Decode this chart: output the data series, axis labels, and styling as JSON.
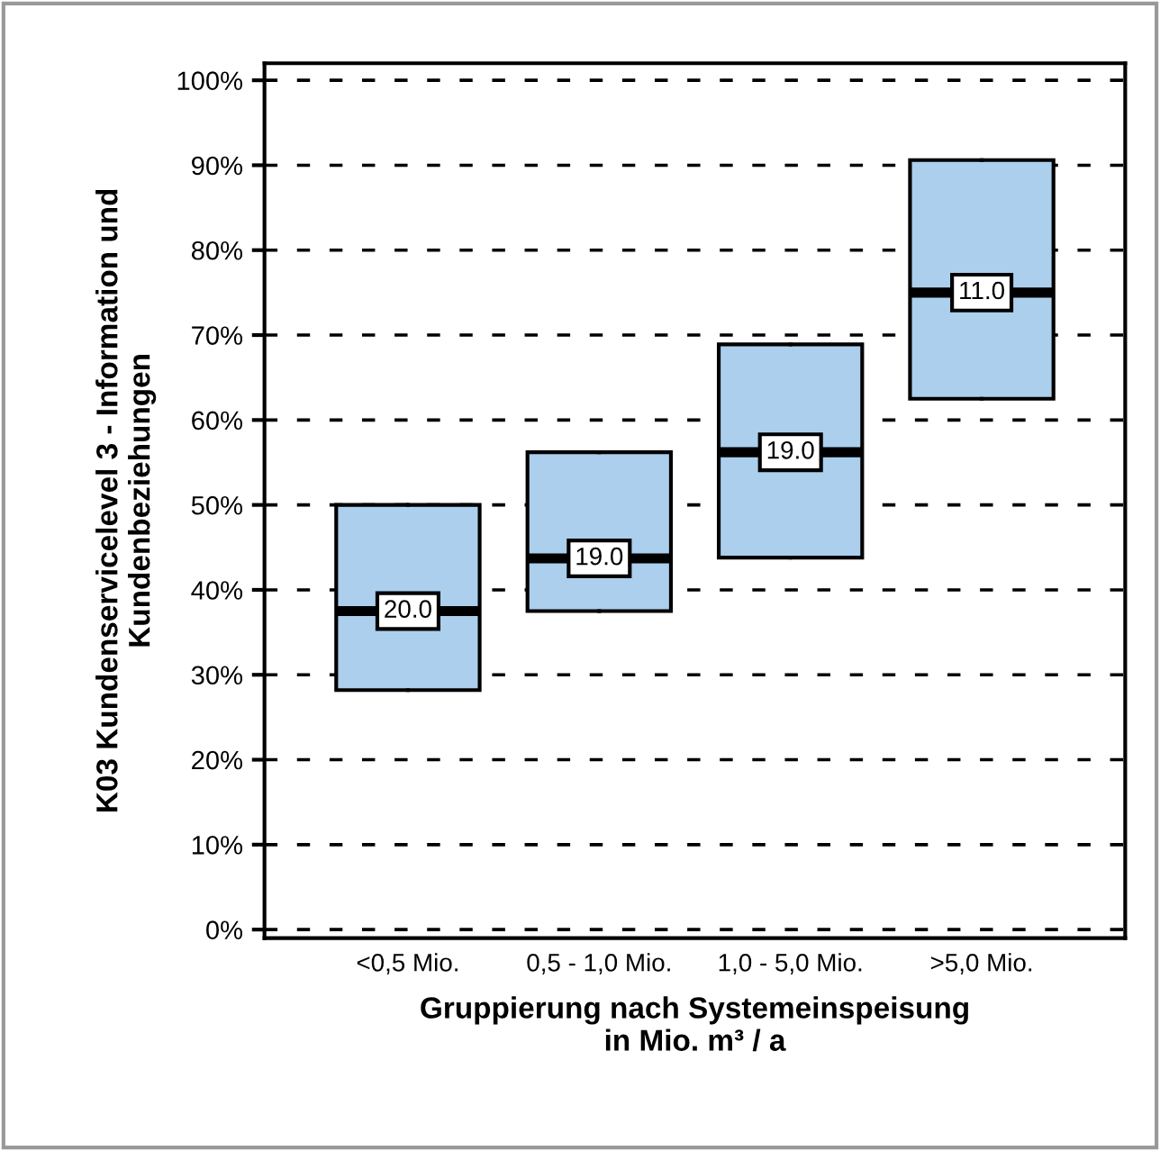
{
  "chart_data": {
    "type": "box",
    "categories": [
      "<0,5 Mio.",
      "0,5 - 1,0 Mio.",
      "1,0 - 5,0 Mio.",
      ">5,0 Mio."
    ],
    "boxes": [
      {
        "low": 28.2,
        "q1": 28.2,
        "median": 37.5,
        "q3": 50.0,
        "high": 50.0
      },
      {
        "low": 37.5,
        "q1": 37.5,
        "median": 43.7,
        "q3": 56.2,
        "high": 56.2
      },
      {
        "low": 43.8,
        "q1": 43.8,
        "median": 56.2,
        "q3": 68.9,
        "high": 68.9
      },
      {
        "low": 62.5,
        "q1": 62.5,
        "median": 75.0,
        "q3": 90.6,
        "high": 90.6
      }
    ],
    "color": "#abcfed",
    "xlabel": "Gruppierung nach Systemeinspeisung\nin Mio. m³ / a",
    "ylabel": "K03 Kundenservicelevel 3 - Information und\nKundenbeziehungen",
    "ylim": [
      -1,
      102
    ],
    "yticks": [
      {
        "value": 0,
        "label": "0%"
      },
      {
        "value": 10,
        "label": "10%"
      },
      {
        "value": 20,
        "label": "20%"
      },
      {
        "value": 30,
        "label": "30%"
      },
      {
        "value": 40,
        "label": "40%"
      },
      {
        "value": 50,
        "label": "50%"
      },
      {
        "value": 60,
        "label": "60%"
      },
      {
        "value": 70,
        "label": "70%"
      },
      {
        "value": 80,
        "label": "80%"
      },
      {
        "value": 90,
        "label": "90%"
      },
      {
        "value": 100,
        "label": "100%"
      }
    ],
    "grid": "y",
    "annotations": [
      {
        "text": "20.0",
        "x": "<0,5 Mio.",
        "y": 37.5
      },
      {
        "text": "19.0",
        "x": "0,5 - 1,0 Mio.",
        "y": 43.7
      },
      {
        "text": "19.0",
        "x": "1,0 - 5,0 Mio.",
        "y": 56.2
      },
      {
        "text": "11.0",
        "x": ">5,0 Mio.",
        "y": 75.0
      }
    ]
  }
}
